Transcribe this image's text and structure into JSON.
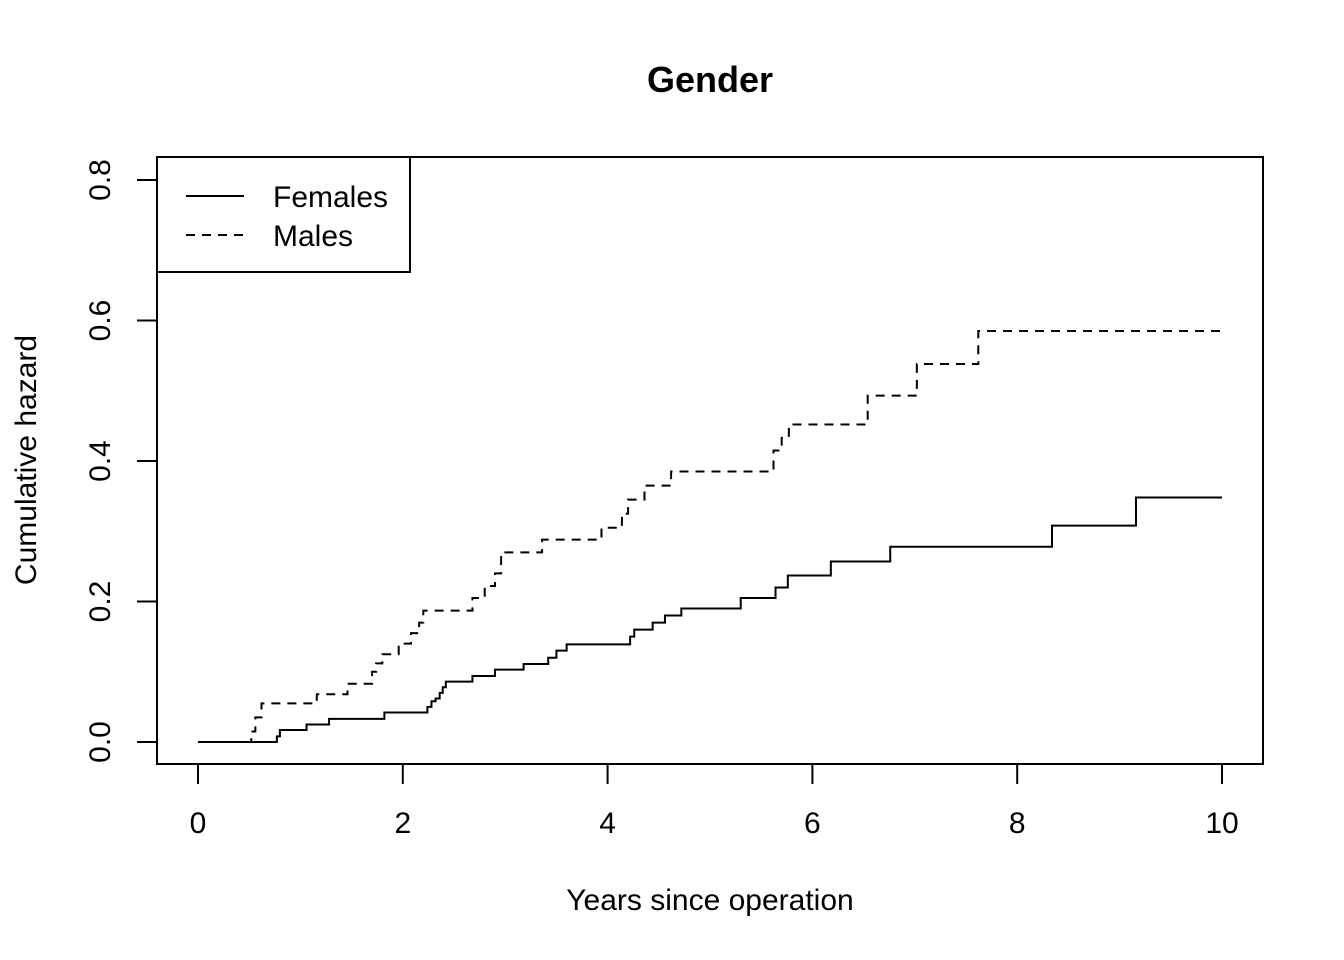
{
  "chart_data": {
    "type": "line",
    "step": true,
    "title": "Gender",
    "xlabel": "Years since operation",
    "ylabel": "Cumulative hazard",
    "xlim": [
      0,
      10
    ],
    "ylim": [
      0,
      0.8
    ],
    "xticks": [
      "0",
      "2",
      "4",
      "6",
      "8",
      "10"
    ],
    "yticks": [
      "0.0",
      "0.2",
      "0.4",
      "0.6",
      "0.8"
    ],
    "grid": false,
    "legend": {
      "position": "top-left"
    },
    "series": [
      {
        "name": "Females",
        "line_style": "solid",
        "x": [
          0,
          0.77,
          0.8,
          1.06,
          1.28,
          1.82,
          2.24,
          2.28,
          2.32,
          2.36,
          2.39,
          2.42,
          2.68,
          2.9,
          3.18,
          3.42,
          3.5,
          3.6,
          4.22,
          4.26,
          4.44,
          4.56,
          4.72,
          5.3,
          5.64,
          5.76,
          6.18,
          6.76,
          8.34,
          9.16,
          10
        ],
        "y": [
          0,
          0.008,
          0.017,
          0.025,
          0.033,
          0.042,
          0.05,
          0.058,
          0.062,
          0.07,
          0.078,
          0.086,
          0.094,
          0.103,
          0.111,
          0.12,
          0.13,
          0.139,
          0.15,
          0.16,
          0.17,
          0.18,
          0.19,
          0.205,
          0.22,
          0.237,
          0.257,
          0.278,
          0.308,
          0.348,
          0.348
        ]
      },
      {
        "name": "Males",
        "line_style": "dashed",
        "x": [
          0,
          0.52,
          0.56,
          0.62,
          1.16,
          1.46,
          1.7,
          1.74,
          1.8,
          1.96,
          2.08,
          2.16,
          2.2,
          2.68,
          2.8,
          2.9,
          2.96,
          3.36,
          3.94,
          4.14,
          4.2,
          4.36,
          4.62,
          5.62,
          5.7,
          5.77,
          6.54,
          7.02,
          7.62,
          10
        ],
        "y": [
          0,
          0.015,
          0.035,
          0.055,
          0.068,
          0.083,
          0.1,
          0.112,
          0.125,
          0.14,
          0.155,
          0.17,
          0.187,
          0.205,
          0.222,
          0.24,
          0.27,
          0.288,
          0.305,
          0.325,
          0.345,
          0.365,
          0.385,
          0.415,
          0.433,
          0.452,
          0.493,
          0.538,
          0.585,
          0.585
        ]
      }
    ]
  }
}
